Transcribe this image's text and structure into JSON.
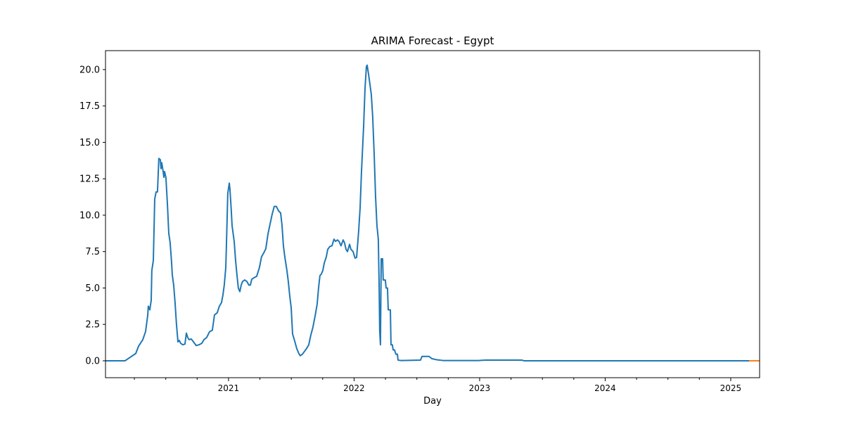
{
  "chart_data": {
    "type": "line",
    "title": "ARIMA Forecast - Egypt",
    "xlabel": "Day",
    "xlim": [
      2020.02,
      2025.23
    ],
    "xticks": [
      2021,
      2022,
      2023,
      2024,
      2025
    ],
    "xminorticks": [
      2020.25,
      2020.5,
      2020.75,
      2021.25,
      2021.5,
      2021.75,
      2022.25,
      2022.5,
      2022.75,
      2023.25,
      2023.5,
      2023.75,
      2024.25,
      2024.5,
      2024.75
    ],
    "ylim": [
      -1.16,
      21.3
    ],
    "yticks": [
      {
        "value": 0,
        "label": "0.0"
      },
      {
        "value": 2.5,
        "label": "2.5"
      },
      {
        "value": 5,
        "label": "5.0"
      },
      {
        "value": 7.5,
        "label": "7.5"
      },
      {
        "value": 10,
        "label": "10.0"
      },
      {
        "value": 12.5,
        "label": "12.5"
      },
      {
        "value": 15,
        "label": "15.0"
      },
      {
        "value": 17.5,
        "label": "17.5"
      },
      {
        "value": 20,
        "label": "20.0"
      }
    ],
    "series": [
      {
        "color": "#1f77b4",
        "x": [
          2020.02,
          2020.176,
          2020.216,
          2020.261,
          2020.283,
          2020.317,
          2020.339,
          2020.356,
          2020.361,
          2020.373,
          2020.384,
          2020.389,
          2020.401,
          2020.412,
          2020.423,
          2020.434,
          2020.445,
          2020.457,
          2020.462,
          2020.468,
          2020.479,
          2020.485,
          2020.49,
          2020.501,
          2020.513,
          2020.524,
          2020.535,
          2020.546,
          2020.552,
          2020.563,
          2020.574,
          2020.585,
          2020.597,
          2020.608,
          2020.619,
          2020.636,
          2020.653,
          2020.664,
          2020.675,
          2020.686,
          2020.703,
          2020.725,
          2020.742,
          2020.765,
          2020.787,
          2020.804,
          2020.826,
          2020.849,
          2020.871,
          2020.888,
          2020.91,
          2020.927,
          2020.944,
          2020.955,
          2020.966,
          2020.978,
          2020.983,
          2020.994,
          2021.006,
          2021.011,
          2021.022,
          2021.028,
          2021.045,
          2021.056,
          2021.067,
          2021.078,
          2021.09,
          2021.101,
          2021.112,
          2021.129,
          2021.146,
          2021.162,
          2021.174,
          2021.185,
          2021.202,
          2021.224,
          2021.246,
          2021.263,
          2021.28,
          2021.297,
          2021.314,
          2021.331,
          2021.347,
          2021.364,
          2021.381,
          2021.398,
          2021.415,
          2021.426,
          2021.437,
          2021.448,
          2021.465,
          2021.476,
          2021.487,
          2021.499,
          2021.51,
          2021.527,
          2021.543,
          2021.56,
          2021.571,
          2021.588,
          2021.605,
          2021.622,
          2021.639,
          2021.655,
          2021.672,
          2021.689,
          2021.706,
          2021.717,
          2021.728,
          2021.739,
          2021.751,
          2021.762,
          2021.779,
          2021.79,
          2021.807,
          2021.824,
          2021.84,
          2021.852,
          2021.868,
          2021.88,
          2021.896,
          2021.913,
          2021.924,
          2021.936,
          2021.947,
          2021.964,
          2021.975,
          2021.992,
          2022.008,
          2022.02,
          2022.036,
          2022.048,
          2022.059,
          2022.076,
          2022.087,
          2022.098,
          2022.104,
          2022.115,
          2022.126,
          2022.137,
          2022.148,
          2022.16,
          2022.171,
          2022.182,
          2022.193,
          2022.199,
          2022.204,
          2022.21,
          2022.216,
          2022.227,
          2022.232,
          2022.249,
          2022.255,
          2022.266,
          2022.272,
          2022.289,
          2022.294,
          2022.305,
          2022.311,
          2022.322,
          2022.333,
          2022.345,
          2022.35,
          2022.373,
          2022.529,
          2022.541,
          2022.597,
          2022.619,
          2022.653,
          2022.709,
          2022.989,
          2023.045,
          2023.336,
          2023.353,
          2025.146
        ],
        "values": [
          0,
          0,
          0.24,
          0.5,
          1.0,
          1.45,
          2.0,
          3.1,
          3.75,
          3.5,
          4.15,
          6.2,
          6.9,
          11.1,
          11.6,
          11.6,
          13.9,
          13.8,
          13.2,
          13.6,
          13.0,
          12.6,
          13.0,
          12.6,
          10.8,
          8.75,
          8.1,
          6.8,
          5.9,
          5.2,
          4.0,
          2.55,
          1.3,
          1.4,
          1.2,
          1.1,
          1.15,
          1.9,
          1.6,
          1.45,
          1.5,
          1.25,
          1.05,
          1.1,
          1.2,
          1.45,
          1.6,
          2.0,
          2.1,
          3.15,
          3.3,
          3.75,
          4.0,
          4.5,
          5.2,
          6.4,
          7.9,
          11.5,
          12.2,
          11.8,
          10.3,
          9.3,
          8.2,
          6.9,
          5.9,
          5.0,
          4.75,
          5.2,
          5.45,
          5.55,
          5.45,
          5.2,
          5.2,
          5.6,
          5.7,
          5.8,
          6.4,
          7.15,
          7.4,
          7.7,
          8.7,
          9.4,
          10.05,
          10.6,
          10.6,
          10.3,
          10.15,
          9.3,
          7.9,
          7.15,
          6.2,
          5.45,
          4.5,
          3.65,
          1.85,
          1.35,
          0.85,
          0.5,
          0.35,
          0.45,
          0.65,
          0.85,
          1.1,
          1.75,
          2.3,
          3.05,
          3.9,
          5.0,
          5.85,
          5.95,
          6.2,
          6.7,
          7.15,
          7.65,
          7.85,
          7.9,
          8.35,
          8.2,
          8.3,
          8.2,
          7.9,
          8.3,
          8.1,
          7.65,
          7.5,
          8.0,
          7.65,
          7.5,
          7.05,
          7.1,
          8.85,
          10.5,
          13.0,
          16.1,
          18.7,
          20.2,
          20.3,
          19.7,
          19.0,
          18.3,
          16.8,
          14.2,
          11.3,
          9.3,
          8.35,
          5.45,
          2.1,
          1.1,
          7.0,
          7.0,
          5.55,
          5.55,
          5.0,
          5.0,
          3.5,
          3.5,
          1.1,
          1.1,
          0.75,
          0.75,
          0.45,
          0.45,
          0.05,
          0.02,
          0.05,
          0.3,
          0.3,
          0.15,
          0.08,
          0.02,
          0.02,
          0.05,
          0.05,
          0,
          0
        ]
      },
      {
        "color": "#ff7f0e",
        "x": [
          2025.146,
          2025.23
        ],
        "values": [
          0,
          0
        ]
      }
    ]
  }
}
